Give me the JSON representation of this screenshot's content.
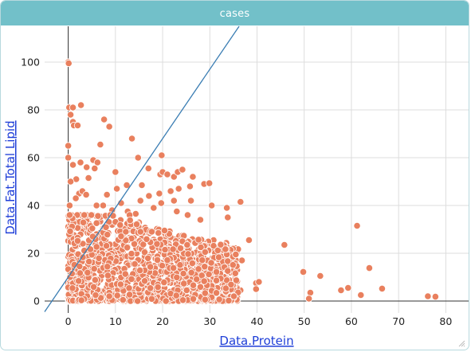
{
  "window": {
    "title": "cases"
  },
  "colors": {
    "header": "#72c0c9",
    "point_fill": "#e9805e",
    "point_stroke": "#ffffff",
    "line": "#3a7db3",
    "grid": "#dddddd",
    "axis": "#333333",
    "axis_title": "#1f3fd8"
  },
  "chart_data": {
    "type": "scatter",
    "xlabel": "Data.Protein",
    "ylabel": "Data.Fat.Total Lipid",
    "xlim": [
      -5,
      85
    ],
    "ylim": [
      -5,
      115
    ],
    "xticks": [
      0,
      10,
      20,
      30,
      40,
      50,
      60,
      70,
      80
    ],
    "yticks": [
      0,
      20,
      40,
      60,
      80,
      100
    ],
    "grid": true,
    "reference_line": {
      "slope": 2.9,
      "intercept": 10
    },
    "points": [
      [
        0,
        100
      ],
      [
        0.1,
        99.5
      ],
      [
        0.2,
        81
      ],
      [
        1,
        81
      ],
      [
        2.7,
        82
      ],
      [
        0.5,
        78
      ],
      [
        1,
        75
      ],
      [
        1.2,
        73.5
      ],
      [
        2,
        73.5
      ],
      [
        7.6,
        76
      ],
      [
        8.7,
        73
      ],
      [
        6.8,
        65.5
      ],
      [
        0,
        65
      ],
      [
        13.5,
        68
      ],
      [
        0,
        60
      ],
      [
        1,
        57
      ],
      [
        2.6,
        58
      ],
      [
        3.9,
        56
      ],
      [
        5.3,
        59
      ],
      [
        6.2,
        58
      ],
      [
        5.6,
        55.5
      ],
      [
        4.3,
        51.5
      ],
      [
        10,
        54
      ],
      [
        1.7,
        51
      ],
      [
        0.5,
        50
      ],
      [
        2.3,
        45
      ],
      [
        3,
        46
      ],
      [
        3.8,
        44.5
      ],
      [
        1.6,
        43
      ],
      [
        0.3,
        40
      ],
      [
        14.8,
        60
      ],
      [
        19.8,
        61
      ],
      [
        17,
        55.5
      ],
      [
        19.5,
        53
      ],
      [
        20,
        54
      ],
      [
        21,
        53
      ],
      [
        22.4,
        52
      ],
      [
        23.2,
        54
      ],
      [
        24.2,
        55
      ],
      [
        26.4,
        52
      ],
      [
        15.6,
        48.5
      ],
      [
        12.4,
        48.5
      ],
      [
        10.3,
        47
      ],
      [
        8.2,
        44.5
      ],
      [
        17.1,
        44
      ],
      [
        19.3,
        45
      ],
      [
        21.7,
        46
      ],
      [
        23.4,
        47
      ],
      [
        28.8,
        49
      ],
      [
        25.8,
        48
      ],
      [
        29.9,
        49.3
      ],
      [
        22.4,
        42
      ],
      [
        26,
        42
      ],
      [
        19.7,
        41
      ],
      [
        15.3,
        42
      ],
      [
        11.2,
        41
      ],
      [
        18.1,
        39
      ],
      [
        30.4,
        40
      ],
      [
        33.6,
        39
      ],
      [
        36.5,
        41.5
      ],
      [
        6,
        40
      ],
      [
        7.4,
        40
      ],
      [
        9.3,
        38
      ],
      [
        12.6,
        37.5
      ],
      [
        14.3,
        36.5
      ],
      [
        23,
        37.5
      ],
      [
        25.3,
        36
      ],
      [
        13,
        36
      ],
      [
        28,
        34
      ],
      [
        33.8,
        35
      ],
      [
        38.3,
        25.5
      ],
      [
        45.8,
        23.5
      ],
      [
        61.2,
        31.5
      ],
      [
        49.8,
        12.2
      ],
      [
        53.4,
        10.5
      ],
      [
        57.8,
        4.5
      ],
      [
        59.3,
        5.5
      ],
      [
        62,
        2.5
      ],
      [
        63.8,
        13.8
      ],
      [
        66.5,
        5.2
      ],
      [
        51.3,
        3.5
      ],
      [
        51,
        1
      ],
      [
        76.2,
        2
      ],
      [
        77.8,
        1.8
      ],
      [
        39.8,
        7.5
      ],
      [
        40.4,
        8
      ],
      [
        39.8,
        5
      ],
      [
        36.5,
        4.5
      ],
      [
        35.7,
        3
      ],
      [
        35.4,
        9.5
      ],
      [
        34,
        12
      ],
      [
        32.8,
        10
      ],
      [
        36.8,
        17
      ],
      [
        31.8,
        20
      ],
      [
        32.5,
        22.5
      ],
      [
        33.5,
        24.3
      ],
      [
        29.5,
        24.5
      ],
      [
        30.8,
        25.5
      ]
    ],
    "cluster": {
      "count": 1400,
      "x_range": [
        0,
        36
      ],
      "y_range": [
        0,
        36
      ],
      "seed": 7
    }
  }
}
